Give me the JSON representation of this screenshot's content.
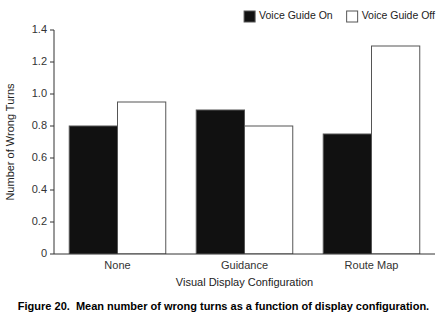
{
  "chart_data": {
    "type": "bar",
    "caption": "Figure 20.  Mean number of wrong turns as a function of display configuration.",
    "xlabel": "Visual Display Configuration",
    "ylabel": "Number of Wrong Turns",
    "categories": [
      "None",
      "Guidance",
      "Route Map"
    ],
    "series": [
      {
        "name": "Voice Guide On",
        "color": "#111111",
        "values": [
          0.8,
          0.9,
          0.75
        ]
      },
      {
        "name": "Voice Guide Off",
        "color": "#ffffff",
        "values": [
          0.95,
          0.8,
          1.3
        ]
      }
    ],
    "ylim": [
      0,
      1.4
    ],
    "yticks": [
      0,
      0.2,
      0.4,
      0.6,
      0.8,
      {
        "value": 1,
        "label": "1.0"
      },
      1.2,
      1.4
    ],
    "legend": "upper right",
    "grid": false
  }
}
